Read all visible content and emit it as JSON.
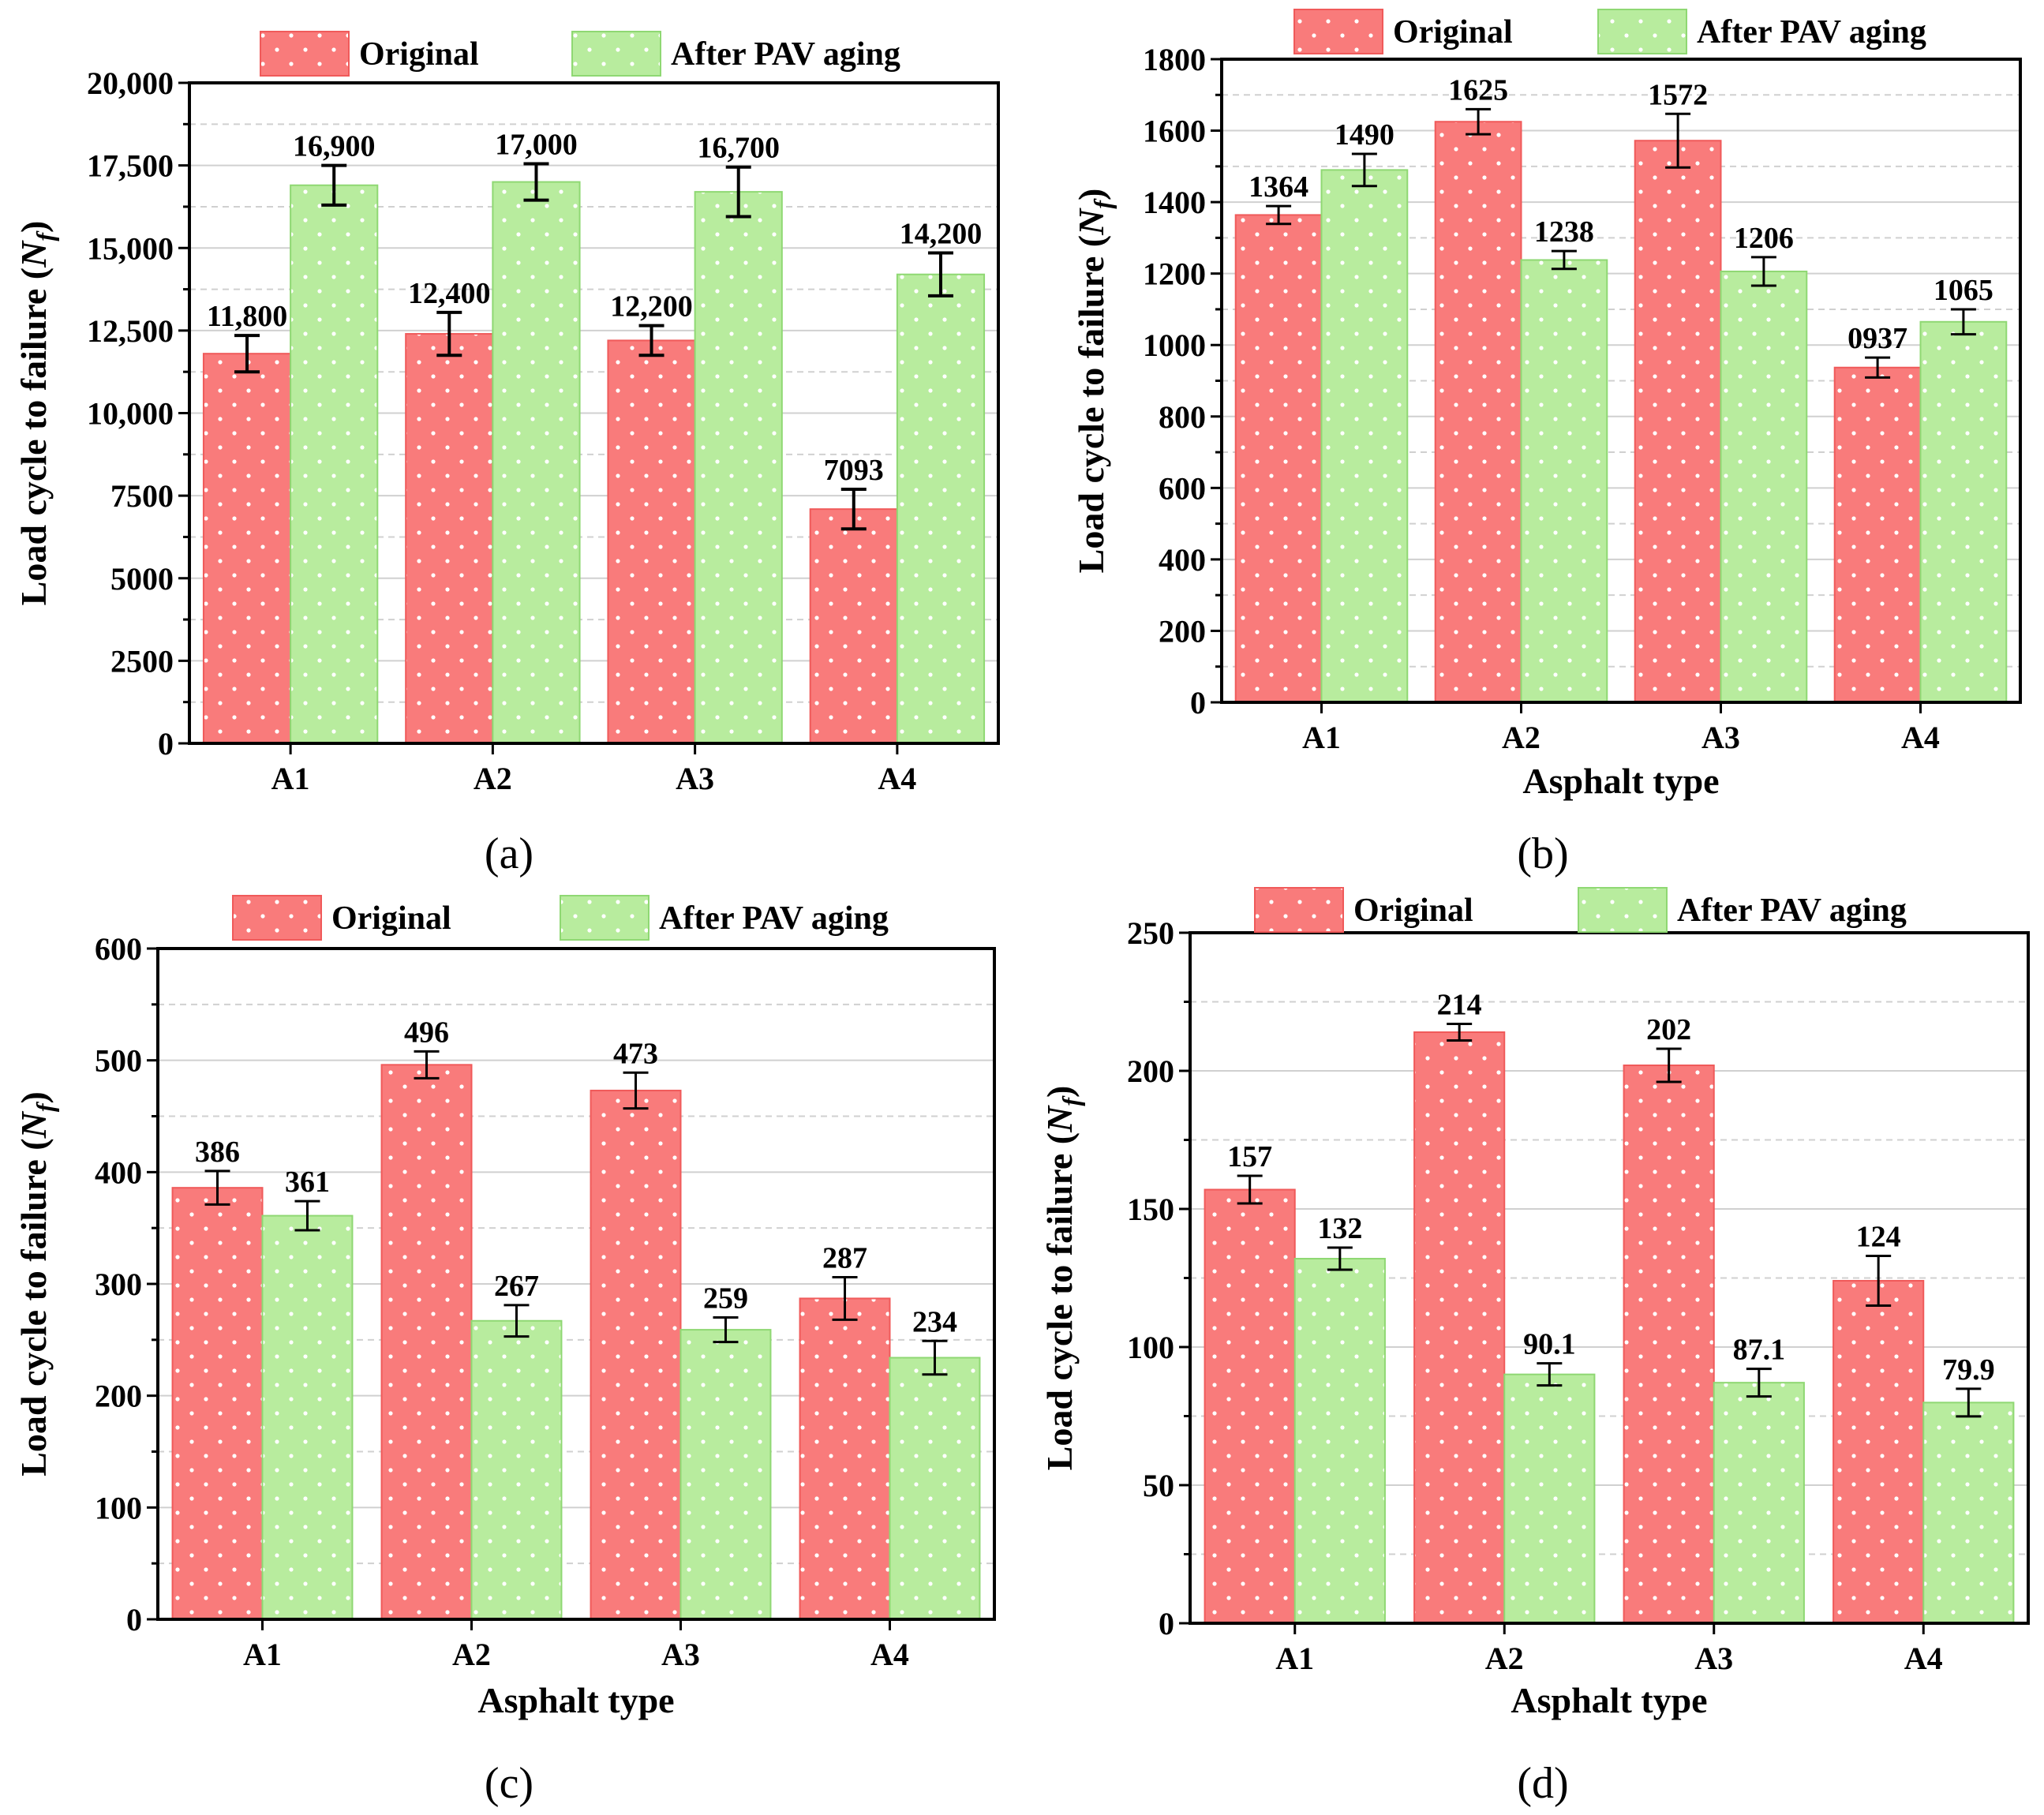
{
  "colors": {
    "original_fill": "#f97b7b",
    "original_edge": "#f05a5a",
    "aged_fill": "#b8ec9e",
    "aged_edge": "#8fd873",
    "dot": "#ffffff",
    "axis": "#000000",
    "grid": "#d0d0d0"
  },
  "chart_data": [
    {
      "panel_label": "(a)",
      "type": "bar",
      "title": "",
      "xlabel": "",
      "ylabel": "Load cycle to failure (N_f)",
      "ylabel_main": "Load cycle to failure (",
      "ylabel_var": "N",
      "ylabel_sub": "f",
      "ylabel_end": ")",
      "categories": [
        "A1",
        "A2",
        "A3",
        "A4"
      ],
      "ylim": [
        0,
        20000
      ],
      "yticks": [
        0,
        2500,
        5000,
        7500,
        10000,
        12500,
        15000,
        17500,
        20000
      ],
      "ytick_labels": [
        "0",
        "2500",
        "5000",
        "7500",
        "10,000",
        "12,500",
        "15,000",
        "17,500",
        "20,000"
      ],
      "grid": true,
      "legend": [
        "Original",
        "After PAV aging"
      ],
      "legend_position": "top",
      "series": [
        {
          "name": "Original",
          "values": [
            11800,
            12400,
            12200,
            7093
          ],
          "errors": [
            550,
            650,
            450,
            600
          ],
          "labels": [
            "11,800",
            "12,400",
            "12,200",
            "7093"
          ]
        },
        {
          "name": "After PAV aging",
          "values": [
            16900,
            17000,
            16700,
            14200
          ],
          "errors": [
            600,
            550,
            750,
            650
          ],
          "labels": [
            "16,900",
            "17,000",
            "16,700",
            "14,200"
          ]
        }
      ]
    },
    {
      "panel_label": "(b)",
      "type": "bar",
      "title": "",
      "xlabel": "Asphalt type",
      "ylabel": "Load cycle to failure (N_f)",
      "ylabel_main": "Load cycle to failure (",
      "ylabel_var": "N",
      "ylabel_sub": "f",
      "ylabel_end": ")",
      "categories": [
        "A1",
        "A2",
        "A3",
        "A4"
      ],
      "ylim": [
        0,
        1800
      ],
      "yticks": [
        0,
        200,
        400,
        600,
        800,
        1000,
        1200,
        1400,
        1600,
        1800
      ],
      "ytick_labels": [
        "0",
        "200",
        "400",
        "600",
        "800",
        "1000",
        "1200",
        "1400",
        "1600",
        "1800"
      ],
      "grid": true,
      "legend": [
        "Original",
        "After PAV aging"
      ],
      "legend_position": "top",
      "series": [
        {
          "name": "Original",
          "values": [
            1364,
            1625,
            1572,
            937
          ],
          "errors": [
            25,
            35,
            75,
            28
          ],
          "labels": [
            "1364",
            "1625",
            "1572",
            "0937"
          ]
        },
        {
          "name": "After PAV aging",
          "values": [
            1490,
            1238,
            1206,
            1065
          ],
          "errors": [
            45,
            25,
            40,
            35
          ],
          "labels": [
            "1490",
            "1238",
            "1206",
            "1065"
          ]
        }
      ]
    },
    {
      "panel_label": "(c)",
      "type": "bar",
      "title": "",
      "xlabel": "Asphalt type",
      "ylabel": "Load cycle to failure (N_f)",
      "ylabel_main": "Load cycle to failure (",
      "ylabel_var": "N",
      "ylabel_sub": "f",
      "ylabel_end": ")",
      "categories": [
        "A1",
        "A2",
        "A3",
        "A4"
      ],
      "ylim": [
        0,
        600
      ],
      "yticks": [
        0,
        100,
        200,
        300,
        400,
        500,
        600
      ],
      "ytick_labels": [
        "0",
        "100",
        "200",
        "300",
        "400",
        "500",
        "600"
      ],
      "grid": true,
      "legend": [
        "Original",
        "After PAV aging"
      ],
      "legend_position": "top",
      "series": [
        {
          "name": "Original",
          "values": [
            386,
            496,
            473,
            287
          ],
          "errors": [
            15,
            12,
            16,
            19
          ],
          "labels": [
            "386",
            "496",
            "473",
            "287"
          ]
        },
        {
          "name": "After PAV aging",
          "values": [
            361,
            267,
            259,
            234
          ],
          "errors": [
            13,
            14,
            11,
            15
          ],
          "labels": [
            "361",
            "267",
            "259",
            "234"
          ]
        }
      ]
    },
    {
      "panel_label": "(d)",
      "type": "bar",
      "title": "",
      "xlabel": "Asphalt type",
      "ylabel": "Load cycle to failure (N_f)",
      "ylabel_main": "Load cycle to failure (",
      "ylabel_var": "N",
      "ylabel_sub": "f",
      "ylabel_end": ")",
      "categories": [
        "A1",
        "A2",
        "A3",
        "A4"
      ],
      "ylim": [
        0,
        250
      ],
      "yticks": [
        0,
        50,
        100,
        150,
        200,
        250
      ],
      "ytick_labels": [
        "0",
        "50",
        "100",
        "150",
        "200",
        "250"
      ],
      "grid": true,
      "legend": [
        "Original",
        "After PAV aging"
      ],
      "legend_position": "top",
      "series": [
        {
          "name": "Original",
          "values": [
            157,
            214,
            202,
            124
          ],
          "errors": [
            5,
            3,
            6,
            9
          ],
          "labels": [
            "157",
            "214",
            "202",
            "124"
          ]
        },
        {
          "name": "After PAV aging",
          "values": [
            132,
            90.1,
            87.1,
            79.9
          ],
          "errors": [
            4,
            4,
            5,
            5
          ],
          "labels": [
            "132",
            "90.1",
            "87.1",
            "79.9"
          ]
        }
      ]
    }
  ]
}
